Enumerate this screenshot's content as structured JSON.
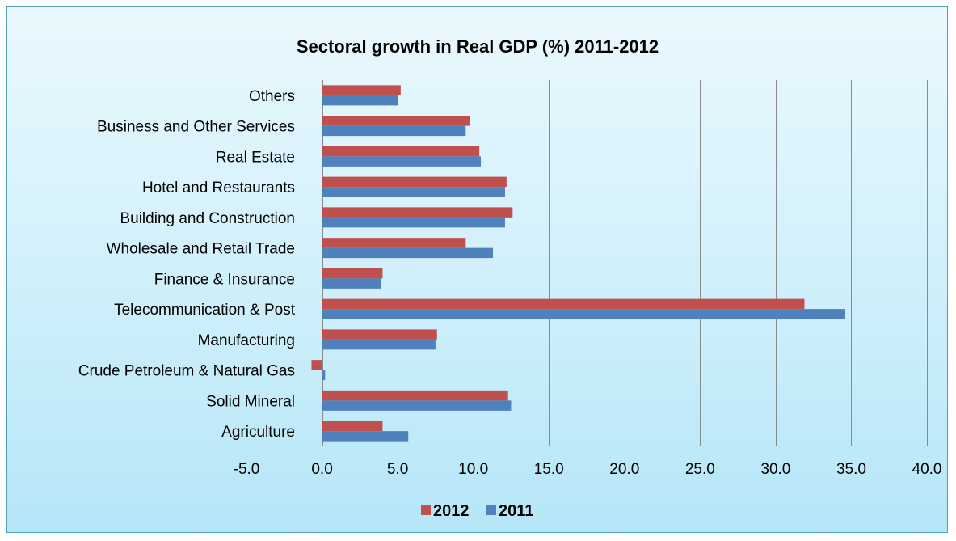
{
  "chart_data": {
    "type": "bar",
    "orientation": "horizontal",
    "title": "Sectoral growth in Real GDP (%) 2011-2012",
    "xlabel": "",
    "ylabel": "",
    "xlim": [
      -5,
      40
    ],
    "x_ticks": [
      "-5.0",
      "0.0",
      "5.0",
      "10.0",
      "15.0",
      "20.0",
      "25.0",
      "30.0",
      "35.0",
      "40.0"
    ],
    "grid": true,
    "legend_position": "bottom",
    "categories": [
      "Agriculture",
      "Solid Mineral",
      "Crude Petroleum & Natural Gas",
      "Manufacturing",
      "Telecommunication & Post",
      "Finance & Insurance",
      "Wholesale and Retail Trade",
      "Building and Construction",
      "Hotel and Restaurants",
      "Real Estate",
      "Business and Other Services",
      "Others"
    ],
    "series": [
      {
        "name": "2012",
        "color": "#c0504d",
        "values": [
          4.0,
          12.3,
          -0.7,
          7.6,
          31.9,
          4.0,
          9.5,
          12.6,
          12.2,
          10.4,
          9.8,
          5.2
        ]
      },
      {
        "name": "2011",
        "color": "#4f81bd",
        "values": [
          5.7,
          12.5,
          0.2,
          7.5,
          34.6,
          3.9,
          11.3,
          12.1,
          12.1,
          10.5,
          9.5,
          5.0
        ]
      }
    ]
  }
}
